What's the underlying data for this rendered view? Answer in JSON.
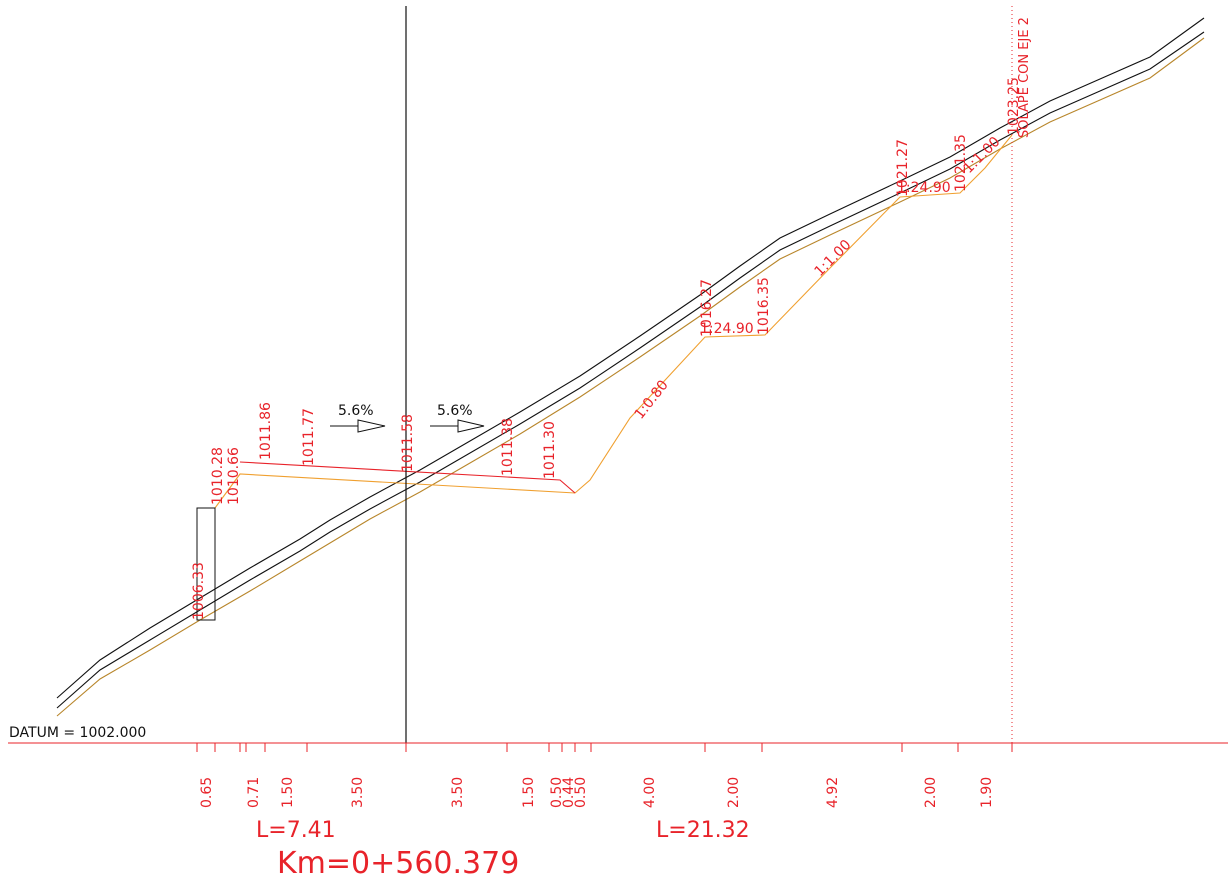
{
  "colors": {
    "terrain": "#111111",
    "design_red": "#e8232a",
    "section_orange": "#f0a030",
    "annotation_red": "#e8232a",
    "datum_text": "#111111"
  },
  "datum_label": "DATUM = 1002.000",
  "crossing_label": "SOLAPE CON EJE 2",
  "slopes": [
    "5.6%",
    "5.6%"
  ],
  "elevations": [
    "1010.28",
    "1010.66",
    "1011.86",
    "1011.77",
    "1011.58",
    "1011.38",
    "1011.30",
    "1016.27",
    "1016.35",
    "1021.27",
    "1021.35",
    "1023.25",
    "1006.33"
  ],
  "side_slopes": [
    "1:0.80",
    "1:24.90",
    "1:1.00",
    "1:24.90",
    "1:1.00"
  ],
  "distances": [
    "0.65",
    "0.71",
    "1.50",
    "3.50",
    "3.50",
    "1.50",
    "0.50",
    "0.44",
    "0.50",
    "4.00",
    "2.00",
    "4.92",
    "2.00",
    "1.90"
  ],
  "lengths": [
    "L=7.41",
    "L=21.32"
  ],
  "station": "Km=0+560.379"
}
